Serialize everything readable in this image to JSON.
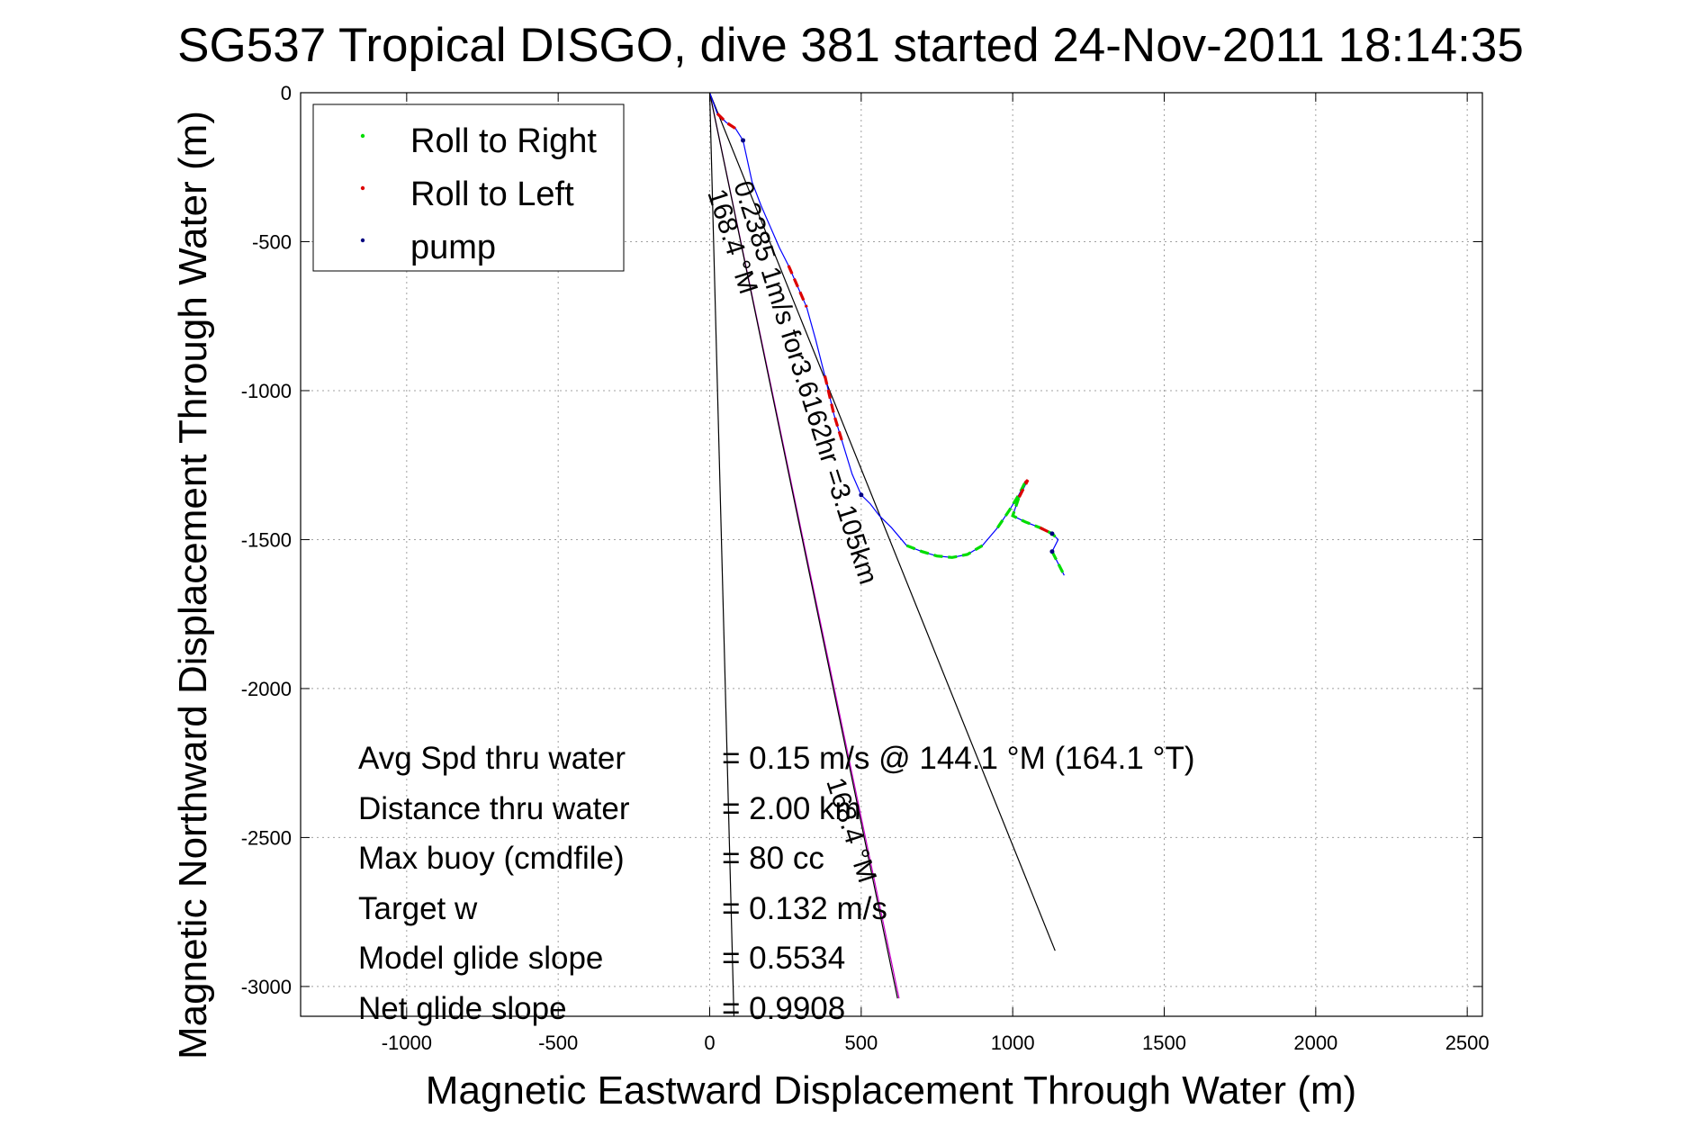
{
  "chart_data": {
    "type": "line",
    "title": "SG537 Tropical DISGO, dive 381 started 24-Nov-2011 18:14:35",
    "xlabel": "Magnetic Eastward Displacement Through Water (m)",
    "ylabel": "Magnetic Northward Displacement Through Water (m)",
    "xlim": [
      -1350,
      2550
    ],
    "ylim": [
      -3100,
      0
    ],
    "xticks": [
      -1000,
      -500,
      0,
      500,
      1000,
      1500,
      2000,
      2500
    ],
    "yticks": [
      0,
      -500,
      -1000,
      -1500,
      -2000,
      -2500,
      -3000
    ],
    "grid": true,
    "legend_placement": "top-left",
    "legend": [
      {
        "label": "Roll to Right",
        "color": "#00dd00"
      },
      {
        "label": "Roll to Left",
        "color": "#dd0000"
      },
      {
        "label": "pump",
        "color": "#000080"
      }
    ],
    "track_color": "#0000ff",
    "track": {
      "x": [
        0,
        25,
        55,
        85,
        110,
        140,
        170,
        200,
        230,
        260,
        290,
        320,
        350,
        380,
        410,
        440,
        470,
        500,
        530,
        560,
        600,
        650,
        700,
        750,
        800,
        850,
        900,
        950,
        990,
        1020,
        1040,
        1050,
        1040,
        1020,
        1000,
        1040,
        1090,
        1130,
        1150,
        1130,
        1150,
        1170
      ],
      "y": [
        0,
        -70,
        -100,
        -120,
        -160,
        -300,
        -380,
        -450,
        -520,
        -580,
        -650,
        -720,
        -830,
        -950,
        -1080,
        -1180,
        -1280,
        -1350,
        -1380,
        -1420,
        -1460,
        -1520,
        -1540,
        -1555,
        -1560,
        -1550,
        -1520,
        -1460,
        -1400,
        -1350,
        -1310,
        -1300,
        -1320,
        -1360,
        -1420,
        -1440,
        -1460,
        -1480,
        -1500,
        -1540,
        -1580,
        -1620
      ]
    },
    "roll_right_segments": [
      [
        21,
        26
      ],
      [
        27,
        31
      ],
      [
        33,
        38
      ],
      [
        39,
        41
      ]
    ],
    "roll_left_segments": [
      [
        1,
        3
      ],
      [
        9,
        11
      ],
      [
        13,
        15
      ],
      [
        30,
        33
      ],
      [
        36,
        37
      ]
    ],
    "pump_points": [
      4,
      17,
      37,
      39
    ],
    "reference_lines": [
      {
        "name": "current",
        "color": "#000000",
        "x": [
          0,
          1140
        ],
        "y": [
          0,
          -2880
        ]
      },
      {
        "name": "heading-168.4-left",
        "color": "#000000",
        "x": [
          0,
          80
        ],
        "y": [
          0,
          -3100
        ]
      },
      {
        "name": "heading-168.4-right",
        "color": "#cc00cc",
        "x": [
          0,
          625
        ],
        "y": [
          0,
          -3040
        ]
      },
      {
        "name": "heading-168.4-right-dark",
        "color": "#000000",
        "x": [
          0,
          620
        ],
        "y": [
          0,
          -3040
        ]
      }
    ],
    "annotations": {
      "speed_text": "0.2385 1m/s for3.6162hr =3.105km",
      "heading_top": "168.4 °M",
      "heading_bottom": "168.4 °M"
    },
    "stats": [
      {
        "label": "Avg Spd thru water",
        "value": "=  0.15 m/s @ 144.1 °M (164.1 °T)"
      },
      {
        "label": "Distance thru water",
        "value": "=  2.00 km"
      },
      {
        "label": "Max buoy (cmdfile)",
        "value": "= 80 cc"
      },
      {
        "label": "Target w",
        "value": "= 0.132 m/s"
      },
      {
        "label": "Model glide slope",
        "value": "= 0.5534"
      },
      {
        "label": "Net glide slope",
        "value": "= 0.9908"
      }
    ]
  }
}
